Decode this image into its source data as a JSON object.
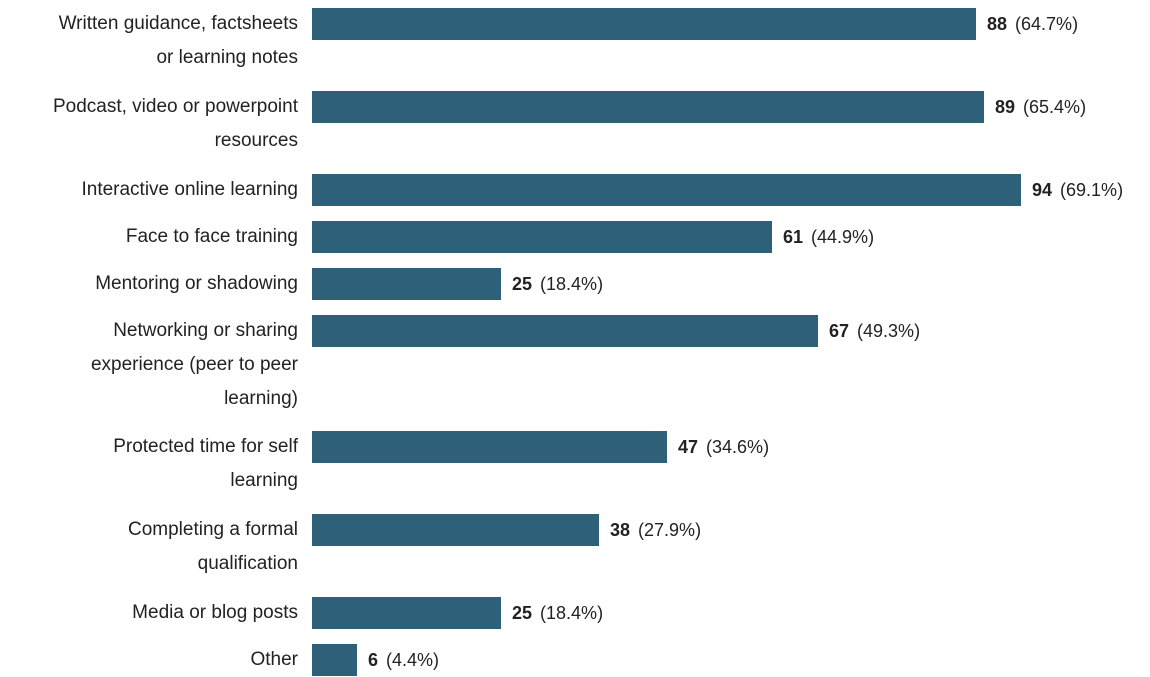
{
  "chart_data": {
    "type": "bar",
    "orientation": "horizontal",
    "title": "",
    "xlabel": "",
    "ylabel": "",
    "bar_color": "#2e6079",
    "xlim": [
      0,
      100
    ],
    "categories": [
      [
        "Written guidance, factsheets",
        "or learning notes"
      ],
      [
        "Podcast, video or powerpoint",
        "resources"
      ],
      [
        "Interactive online learning"
      ],
      [
        "Face to face training"
      ],
      [
        "Mentoring or shadowing"
      ],
      [
        "Networking or sharing",
        "experience (peer to peer",
        "learning)"
      ],
      [
        "Protected time for self",
        "learning"
      ],
      [
        "Completing a formal",
        "qualification"
      ],
      [
        "Media or blog posts"
      ],
      [
        "Other"
      ]
    ],
    "values": [
      88,
      89,
      94,
      61,
      25,
      67,
      47,
      38,
      25,
      6
    ],
    "percent_labels": [
      "(64.7%)",
      "(65.4%)",
      "(69.1%)",
      "(44.9%)",
      "(18.4%)",
      "(49.3%)",
      "(34.6%)",
      "(27.9%)",
      "(18.4%)",
      "(4.4%)"
    ],
    "grid": false,
    "legend": "none"
  }
}
